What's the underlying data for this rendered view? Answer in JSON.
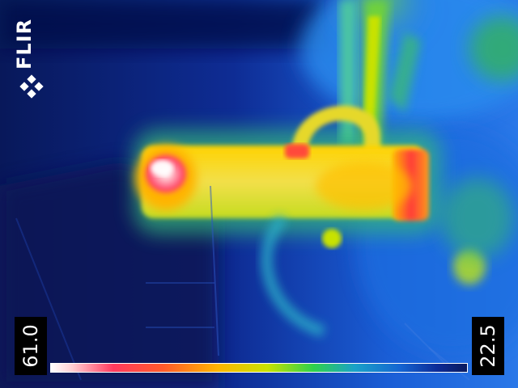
{
  "brand": {
    "logo_text": "FLIR"
  },
  "scale": {
    "max_temp": "61.0",
    "min_temp": "22.5"
  },
  "colors": {
    "background_cold": "#0a1a6b",
    "mid_blue": "#1f5ed6",
    "warm_yellow": "#f2e04a",
    "hot_red": "#ff3a5e"
  }
}
